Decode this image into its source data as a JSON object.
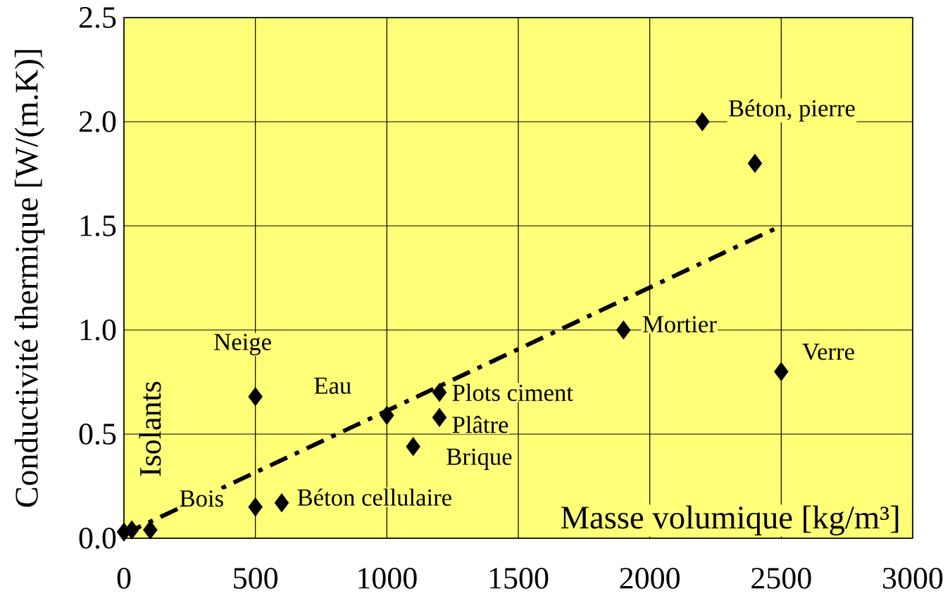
{
  "chart_data": {
    "type": "scatter",
    "xlabel": "Masse volumique [kg/m³]",
    "ylabel": "Conductivité thermique [W/(m.K)]",
    "xlim": [
      0,
      3000
    ],
    "ylim": [
      0,
      2.5
    ],
    "xticks": [
      0,
      500,
      1000,
      1500,
      2000,
      2500,
      3000
    ],
    "yticks": [
      {
        "value": 0,
        "label": "0.0"
      },
      {
        "value": 0.5,
        "label": "0.5"
      },
      {
        "value": 1,
        "label": "1.0"
      },
      {
        "value": 1.5,
        "label": "1.5"
      },
      {
        "value": 2,
        "label": "2.0"
      },
      {
        "value": 2.5,
        "label": "2.5"
      }
    ],
    "grid": true,
    "marker": "diamond",
    "series": [
      {
        "color": "#000000",
        "x": [
          0,
          30,
          100,
          500,
          500,
          600,
          1000,
          1100,
          1200,
          1200,
          1900,
          2200,
          2400,
          2500
        ],
        "values": [
          0.03,
          0.04,
          0.04,
          0.68,
          0.15,
          0.17,
          0.59,
          0.44,
          0.7,
          0.58,
          1.0,
          2.0,
          1.8,
          0.8
        ]
      },
      {
        "type": "line",
        "color": "#000000",
        "marker": "none",
        "line_style": "dashed",
        "x": [
          0,
          2500
        ],
        "values": [
          0.02,
          1.5
        ]
      }
    ],
    "annotations": [
      {
        "text": "Neige",
        "x": 500,
        "y": 0.68
      },
      {
        "text": "Eau",
        "x": 1000,
        "y": 0.59
      },
      {
        "text": "Plots ciment",
        "x": 1200,
        "y": 0.7
      },
      {
        "text": "Plâtre",
        "x": 1200,
        "y": 0.58
      },
      {
        "text": "Brique",
        "x": 1100,
        "y": 0.44
      },
      {
        "text": "Bois",
        "x": 500,
        "y": 0.15
      },
      {
        "text": "Béton cellulaire",
        "x": 600,
        "y": 0.17
      },
      {
        "text": "Mortier",
        "x": 1900,
        "y": 1.0
      },
      {
        "text": "Béton, pierre",
        "x": 2200,
        "y": 2.0
      },
      {
        "text": "Verre",
        "x": 2500,
        "y": 0.8
      },
      "Isolants"
    ]
  }
}
